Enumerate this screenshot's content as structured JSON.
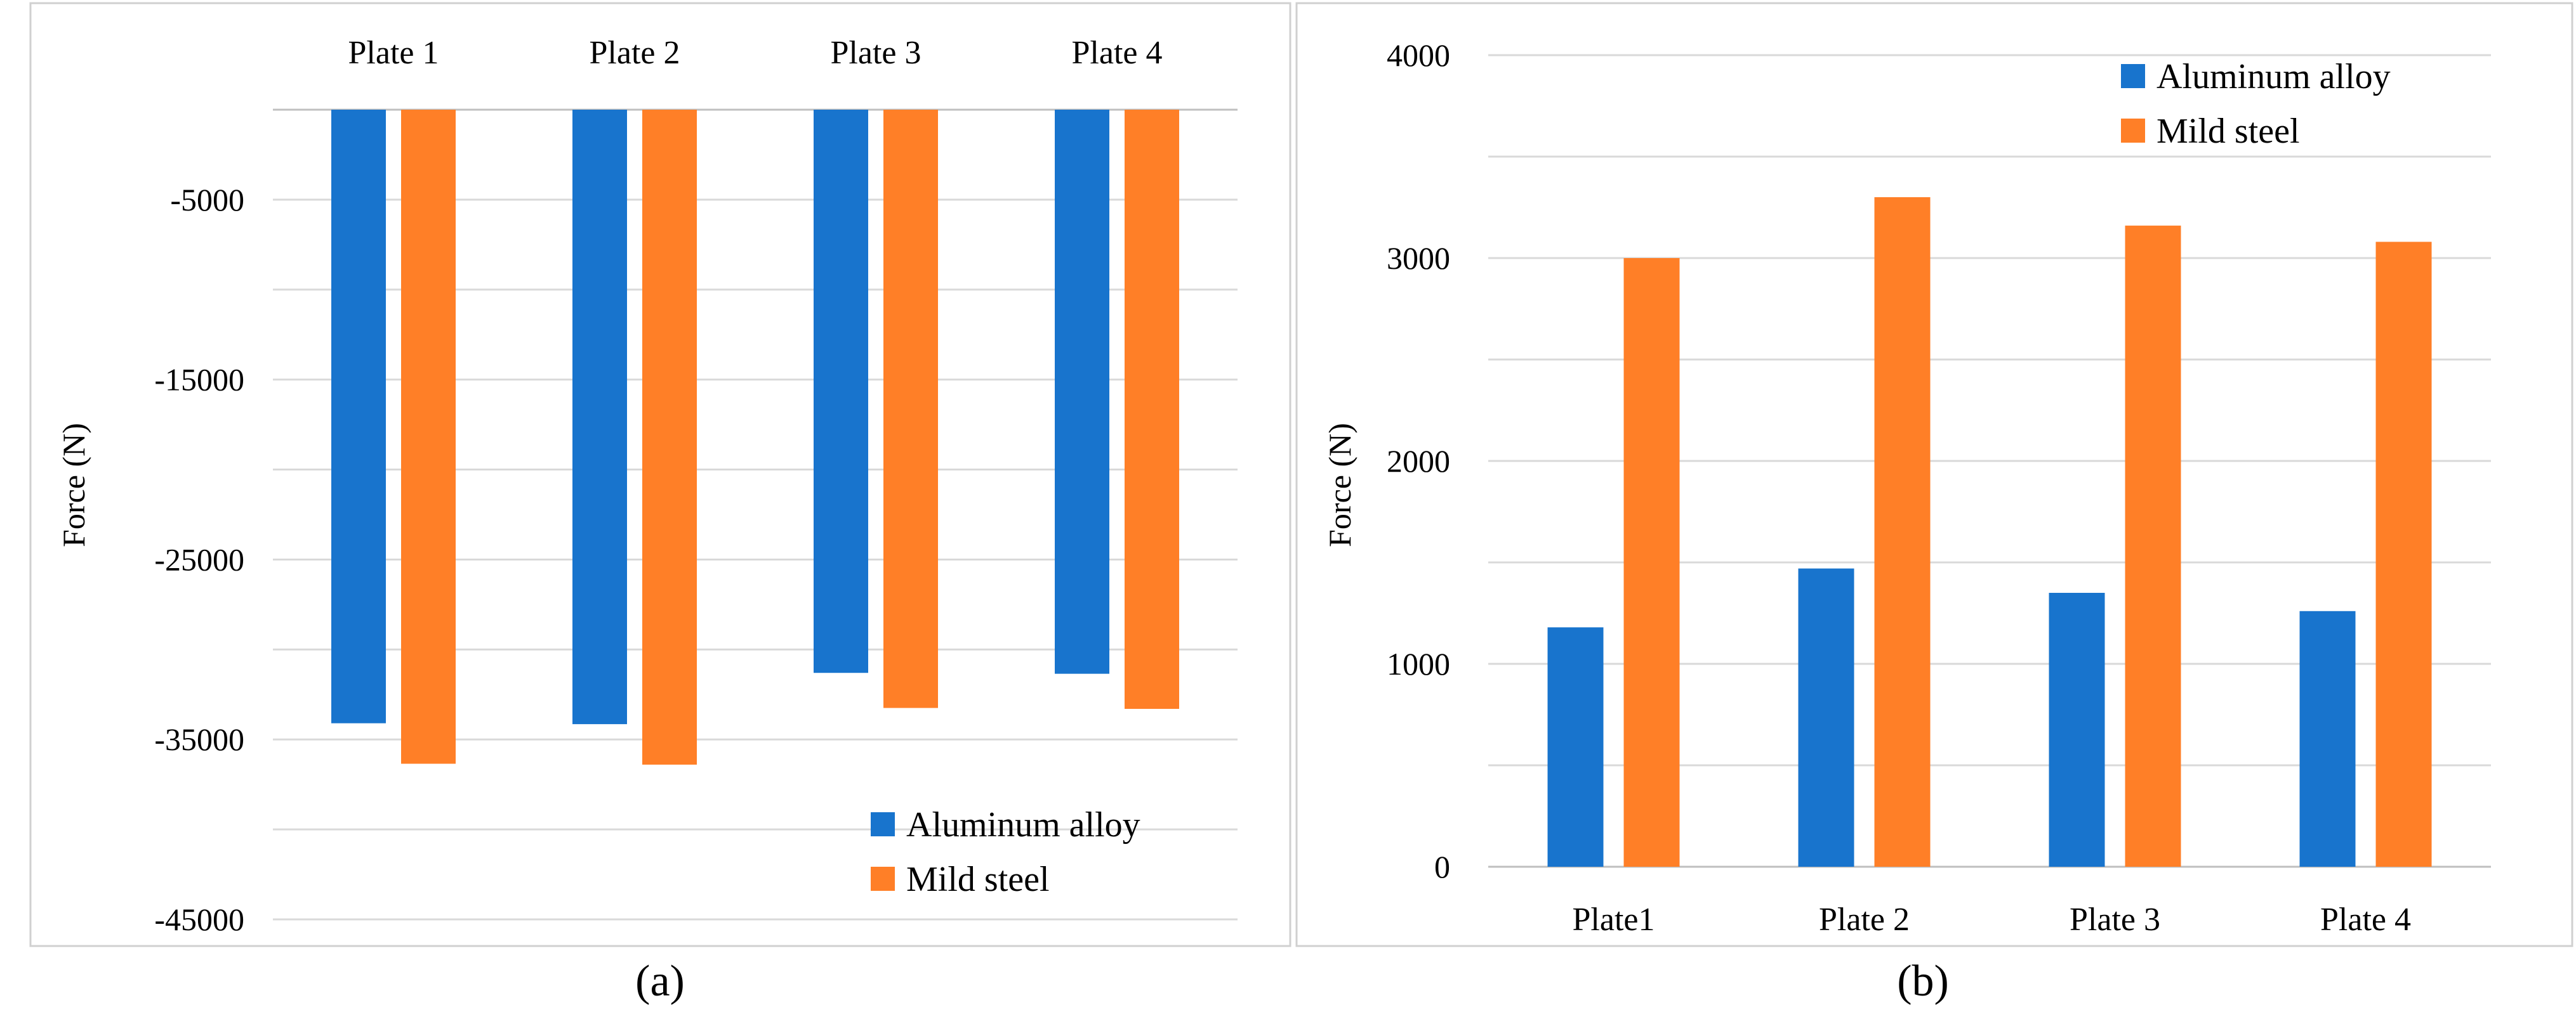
{
  "colors": {
    "series_0": "#1874cd",
    "series_1": "#ff7f27"
  },
  "chart_data": [
    {
      "type": "bar",
      "caption": "(a)",
      "title": "",
      "xlabel": "",
      "ylabel": "Force (N)",
      "categories": [
        "Plate 1",
        "Plate 2",
        "Plate 3",
        "Plate 4"
      ],
      "series": [
        {
          "name": "Aluminum alloy",
          "values": [
            -34100,
            -34150,
            -31300,
            -31350
          ]
        },
        {
          "name": "Mild steel",
          "values": [
            -36350,
            -36400,
            -33250,
            -33300
          ]
        }
      ],
      "ylim": [
        -45000,
        0
      ],
      "yticks": [
        -5000,
        -15000,
        -25000,
        -35000,
        -45000
      ],
      "gridlines": [
        0,
        -5000,
        -10000,
        -15000,
        -20000,
        -25000,
        -30000,
        -35000,
        -40000,
        -45000
      ],
      "category_labels_position": "top",
      "legend": "bottom-right"
    },
    {
      "type": "bar",
      "caption": "(b)",
      "title": "",
      "xlabel": "",
      "ylabel": "Force (N)",
      "categories": [
        "Plate1",
        "Plate 2",
        "Plate 3",
        "Plate 4"
      ],
      "series": [
        {
          "name": "Aluminum alloy",
          "values": [
            1180,
            1470,
            1350,
            1260
          ]
        },
        {
          "name": "Mild steel",
          "values": [
            3000,
            3300,
            3160,
            3080
          ]
        }
      ],
      "ylim": [
        0,
        4000
      ],
      "yticks": [
        0,
        1000,
        2000,
        3000,
        4000
      ],
      "gridlines": [
        0,
        500,
        1000,
        1500,
        2000,
        2500,
        3000,
        3500,
        4000
      ],
      "category_labels_position": "bottom",
      "legend": "top-right"
    }
  ]
}
